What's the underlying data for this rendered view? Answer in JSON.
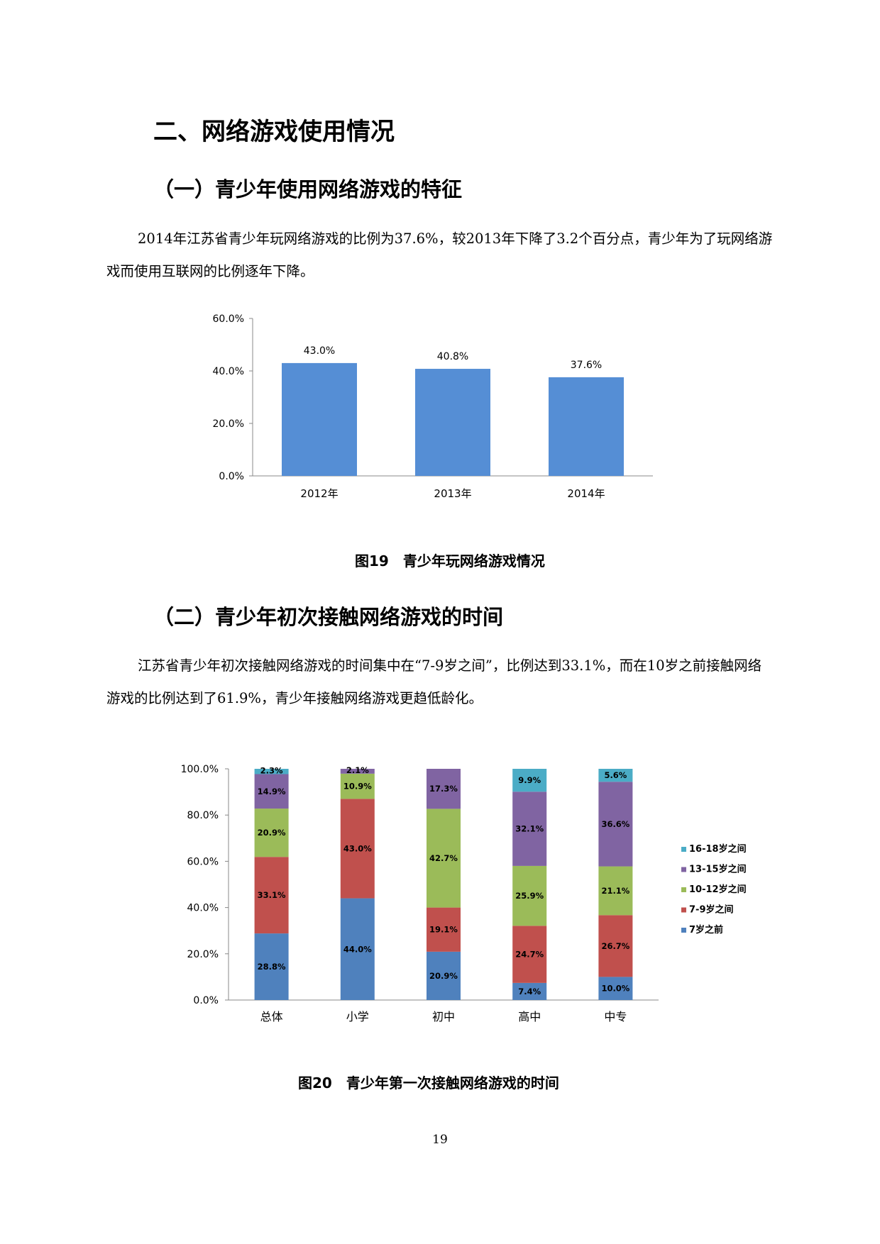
{
  "section_title": "二、网络游戏使用情况",
  "subsection1": {
    "title": "（一）青少年使用网络游戏的特征",
    "paragraph": "2014年江苏省青少年玩网络游戏的比例为37.6%，较2013年下降了3.2个百分点，青少年为了玩网络游戏而使用互联网的比例逐年下降。",
    "figure_caption": "图19　青少年玩网络游戏情况"
  },
  "subsection2": {
    "title": "（二）青少年初次接触网络游戏的时间",
    "paragraph": "江苏省青少年初次接触网络游戏的时间集中在“7-9岁之间”，比例达到33.1%，而在10岁之前接触网络游戏的比例达到了61.9%，青少年接触网络游戏更趋低龄化。",
    "figure_caption": "图20　青少年第一次接触网络游戏的时间"
  },
  "page_number": "19",
  "chart_data": [
    {
      "type": "bar",
      "categories": [
        "2012年",
        "2013年",
        "2014年"
      ],
      "values": [
        43.0,
        40.8,
        37.6
      ],
      "value_labels": [
        "43.0%",
        "40.8%",
        "37.6%"
      ],
      "yticks": [
        "0.0%",
        "20.0%",
        "40.0%",
        "60.0%"
      ],
      "ylim": [
        0,
        60
      ],
      "grid": false,
      "bar_color": "#558ED5"
    },
    {
      "type": "bar",
      "stacked": true,
      "categories": [
        "总体",
        "小学",
        "初中",
        "高中",
        "中专"
      ],
      "series": [
        {
          "name": "7岁之前",
          "color": "#4F81BD",
          "values": [
            28.8,
            44.0,
            20.9,
            7.4,
            10.0
          ],
          "labels": [
            "28.8%",
            "44.0%",
            "20.9%",
            "7.4%",
            "10.0%"
          ]
        },
        {
          "name": "7-9岁之间",
          "color": "#C0504D",
          "values": [
            33.1,
            43.0,
            19.1,
            24.7,
            26.7
          ],
          "labels": [
            "33.1%",
            "43.0%",
            "19.1%",
            "24.7%",
            "26.7%"
          ]
        },
        {
          "name": "10-12岁之间",
          "color": "#9BBB59",
          "values": [
            20.9,
            10.9,
            42.7,
            25.9,
            21.1
          ],
          "labels": [
            "20.9%",
            "10.9%",
            "42.7%",
            "25.9%",
            "21.1%"
          ]
        },
        {
          "name": "13-15岁之间",
          "color": "#8064A2",
          "values": [
            14.9,
            2.1,
            17.3,
            32.1,
            36.6
          ],
          "labels": [
            "14.9%",
            "2.1%",
            "17.3%",
            "32.1%",
            "36.6%"
          ]
        },
        {
          "name": "16-18岁之间",
          "color": "#4BACC6",
          "values": [
            2.3,
            0.0,
            0.0,
            9.9,
            5.6
          ],
          "labels": [
            "2.3%",
            "",
            "",
            "9.9%",
            "5.6%"
          ]
        }
      ],
      "yticks": [
        "0.0%",
        "20.0%",
        "40.0%",
        "60.0%",
        "80.0%",
        "100.0%"
      ],
      "ylim": [
        0,
        100
      ],
      "grid": false,
      "legend_position": "right"
    }
  ]
}
